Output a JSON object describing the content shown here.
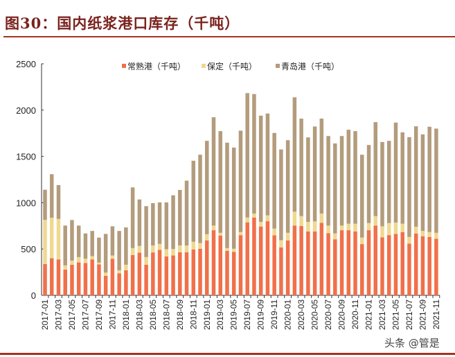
{
  "title": "图30：国内纸浆港口库存（千吨）",
  "watermark": "头条 @管是",
  "chart_data": {
    "type": "bar",
    "stacked": true,
    "title": "图30：国内纸浆港口库存（千吨）",
    "xlabel": "",
    "ylabel": "",
    "ylim": [
      0,
      2500
    ],
    "yticks": [
      "0",
      "500",
      "1000",
      "1500",
      "2000",
      "2500"
    ],
    "grid": false,
    "legend_position": "top",
    "categories": [
      "2017-01",
      "2017-02",
      "2017-03",
      "2017-04",
      "2017-05",
      "2017-06",
      "2017-07",
      "2017-08",
      "2017-09",
      "2017-10",
      "2017-11",
      "2017-12",
      "2018-01",
      "2018-02",
      "2018-03",
      "2018-04",
      "2018-05",
      "2018-06",
      "2018-07",
      "2018-08",
      "2018-09",
      "2018-10",
      "2018-11",
      "2018-12",
      "2019-01",
      "2019-02",
      "2019-03",
      "2019-04",
      "2019-05",
      "2019-06",
      "2019-07",
      "2019-08",
      "2019-09",
      "2019-10",
      "2019-11",
      "2019-12",
      "2020-01",
      "2020-02",
      "2020-03",
      "2020-04",
      "2020-05",
      "2020-06",
      "2020-07",
      "2020-08",
      "2020-09",
      "2020-10",
      "2020-11",
      "2020-12",
      "2021-01",
      "2021-02",
      "2021-03",
      "2021-04",
      "2021-05",
      "2021-06",
      "2021-07",
      "2021-08",
      "2021-09",
      "2021-10",
      "2021-11"
    ],
    "series": [
      {
        "name": "常熟港（千吨）",
        "color": "#f0704a",
        "values": [
          338,
          400,
          388,
          278,
          330,
          355,
          348,
          388,
          333,
          210,
          395,
          238,
          270,
          435,
          460,
          330,
          463,
          490,
          420,
          430,
          465,
          465,
          495,
          503,
          593,
          703,
          645,
          480,
          468,
          650,
          788,
          840,
          743,
          800,
          648,
          518,
          593,
          753,
          748,
          690,
          690,
          783,
          670,
          605,
          703,
          703,
          690,
          553,
          703,
          753,
          625,
          650,
          663,
          683,
          558,
          668,
          638,
          630,
          610
        ]
      },
      {
        "name": "保定（千吨）",
        "color": "#f0d890",
        "values": [
          477,
          438,
          437,
          45,
          45,
          58,
          47,
          35,
          20,
          35,
          35,
          32,
          60,
          75,
          73,
          83,
          75,
          65,
          78,
          70,
          73,
          73,
          83,
          62,
          67,
          50,
          30,
          30,
          35,
          33,
          52,
          43,
          50,
          63,
          72,
          77,
          82,
          150,
          107,
          103,
          108,
          100,
          83,
          63,
          50,
          70,
          83,
          70,
          77,
          102,
          120,
          130,
          122,
          90,
          72,
          72,
          57,
          53,
          65
        ]
      },
      {
        "name": "青岛港（千吨）",
        "color": "#b39c7c",
        "values": [
          325,
          470,
          365,
          430,
          438,
          340,
          273,
          272,
          270,
          418,
          315,
          425,
          403,
          655,
          502,
          550,
          457,
          448,
          505,
          580,
          600,
          700,
          875,
          953,
          1008,
          1170,
          1098,
          1138,
          1092,
          1095,
          1343,
          1290,
          1147,
          1100,
          1033,
          980,
          1000,
          1235,
          1053,
          912,
          1025,
          1025,
          967,
          972,
          967,
          1015,
          1000,
          895,
          843,
          1015,
          910,
          888,
          1080,
          987,
          1078,
          1085,
          1043,
          1137,
          1125
        ]
      }
    ]
  }
}
